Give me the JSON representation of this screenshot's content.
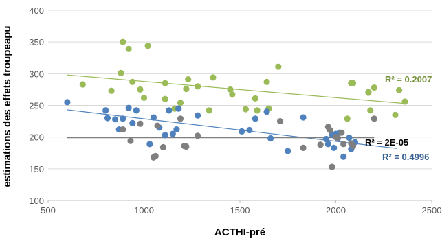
{
  "chart_data": {
    "type": "scatter",
    "xlabel": "ACTHI-pré",
    "ylabel": "estimations des effets troupeapu",
    "xlim": [
      500,
      2500
    ],
    "ylim": [
      100,
      400
    ],
    "x_ticks": [
      500,
      1000,
      1500,
      2000,
      2500
    ],
    "y_ticks": [
      100,
      150,
      200,
      250,
      300,
      350,
      400
    ],
    "x_tick_labels": [
      "500",
      "1000",
      "1500",
      "2000",
      "2500"
    ],
    "y_tick_labels": [
      "100",
      "150",
      "200",
      "250",
      "300",
      "350",
      "400"
    ],
    "grid": "horizontal",
    "series": [
      {
        "color": "#9BBB59",
        "points": [
          [
            680,
            283
          ],
          [
            830,
            273
          ],
          [
            880,
            301
          ],
          [
            890,
            350
          ],
          [
            920,
            339
          ],
          [
            940,
            287
          ],
          [
            980,
            275
          ],
          [
            1000,
            262
          ],
          [
            1020,
            344
          ],
          [
            1110,
            285
          ],
          [
            1110,
            260
          ],
          [
            1160,
            245
          ],
          [
            1190,
            254
          ],
          [
            1220,
            276
          ],
          [
            1230,
            291
          ],
          [
            1280,
            280
          ],
          [
            1340,
            242
          ],
          [
            1360,
            294
          ],
          [
            1450,
            275
          ],
          [
            1460,
            267
          ],
          [
            1530,
            244
          ],
          [
            1580,
            261
          ],
          [
            1590,
            242
          ],
          [
            1640,
            287
          ],
          [
            1650,
            245
          ],
          [
            1700,
            311
          ],
          [
            2080,
            285
          ],
          [
            2090,
            285
          ],
          [
            2170,
            270
          ],
          [
            2170,
            271
          ],
          [
            2180,
            242
          ],
          [
            2200,
            278
          ],
          [
            2310,
            235
          ],
          [
            2330,
            274
          ],
          [
            2360,
            256
          ],
          [
            2060,
            229
          ]
        ],
        "trendline": {
          "x": [
            600,
            2360
          ],
          "y": [
            298,
            253
          ]
        },
        "r2_label": "R² = 0.2007"
      },
      {
        "color": "#4F81BD",
        "points": [
          [
            600,
            255
          ],
          [
            800,
            242
          ],
          [
            810,
            230
          ],
          [
            850,
            228
          ],
          [
            870,
            212
          ],
          [
            890,
            229
          ],
          [
            920,
            246
          ],
          [
            940,
            222
          ],
          [
            960,
            242
          ],
          [
            1030,
            189
          ],
          [
            1050,
            231
          ],
          [
            1080,
            215
          ],
          [
            1110,
            203
          ],
          [
            1130,
            242
          ],
          [
            1150,
            205
          ],
          [
            1170,
            212
          ],
          [
            1180,
            245
          ],
          [
            1280,
            234
          ],
          [
            1510,
            209
          ],
          [
            1550,
            211
          ],
          [
            1580,
            229
          ],
          [
            1640,
            240
          ],
          [
            1660,
            198
          ],
          [
            1750,
            178
          ],
          [
            1830,
            231
          ],
          [
            1950,
            197
          ],
          [
            1960,
            189
          ],
          [
            1980,
            204
          ],
          [
            1990,
            183
          ],
          [
            2010,
            198
          ],
          [
            2040,
            169
          ],
          [
            2070,
            199
          ],
          [
            2080,
            181
          ],
          [
            2100,
            192
          ],
          [
            2020,
            207
          ],
          [
            2000,
            205
          ]
        ],
        "trendline": {
          "x": [
            600,
            2320
          ],
          "y": [
            243,
            182
          ]
        },
        "r2_label": "R² = 0.4996"
      },
      {
        "color": "#7F7F7F",
        "points": [
          [
            890,
            212
          ],
          [
            930,
            194
          ],
          [
            980,
            221
          ],
          [
            1050,
            168
          ],
          [
            1060,
            170
          ],
          [
            1070,
            218
          ],
          [
            1100,
            184
          ],
          [
            1190,
            229
          ],
          [
            1210,
            186
          ],
          [
            1220,
            185
          ],
          [
            1280,
            202
          ],
          [
            1710,
            225
          ],
          [
            1830,
            183
          ],
          [
            1920,
            188
          ],
          [
            1960,
            216
          ],
          [
            1970,
            211
          ],
          [
            1980,
            153
          ],
          [
            2000,
            200
          ],
          [
            2010,
            199
          ],
          [
            2030,
            207
          ],
          [
            2040,
            189
          ],
          [
            2080,
            190
          ],
          [
            2090,
            186
          ],
          [
            2200,
            229
          ]
        ],
        "trendline": {
          "x": [
            600,
            2200
          ],
          "y": [
            199,
            199
          ]
        },
        "r2_label": "R² = 2E-05"
      }
    ]
  }
}
